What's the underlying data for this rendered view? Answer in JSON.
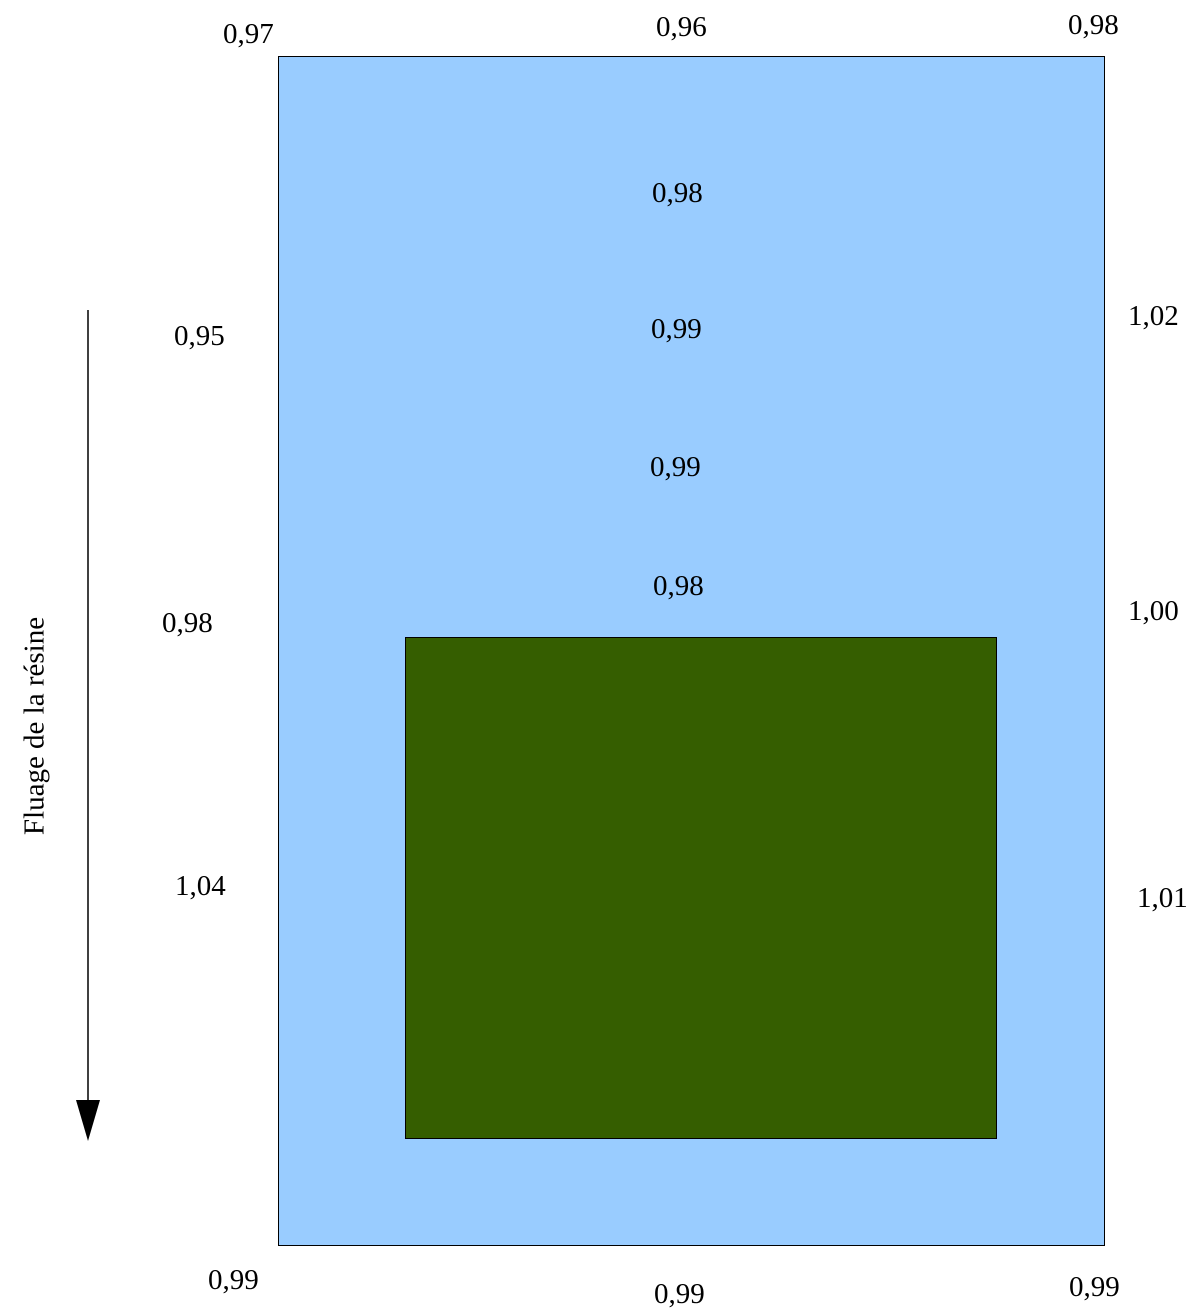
{
  "colors": {
    "panel": "#99ccff",
    "insert": "#355e00",
    "arrow": "#000000"
  },
  "flow_label": "Fluage de la résine",
  "values": {
    "top_left": "0,97",
    "top_center": "0,96",
    "top_right": "0,98",
    "center_1": "0,98",
    "center_2": "0,99",
    "center_3": "0,99",
    "center_4": "0,98",
    "left_1": "0,95",
    "left_2": "0,98",
    "left_3": "1,04",
    "right_1": "1,02",
    "right_2": "1,00",
    "right_3": "1,01",
    "bottom_left": "0,99",
    "bottom_center": "0,99",
    "bottom_right": "0,99"
  }
}
